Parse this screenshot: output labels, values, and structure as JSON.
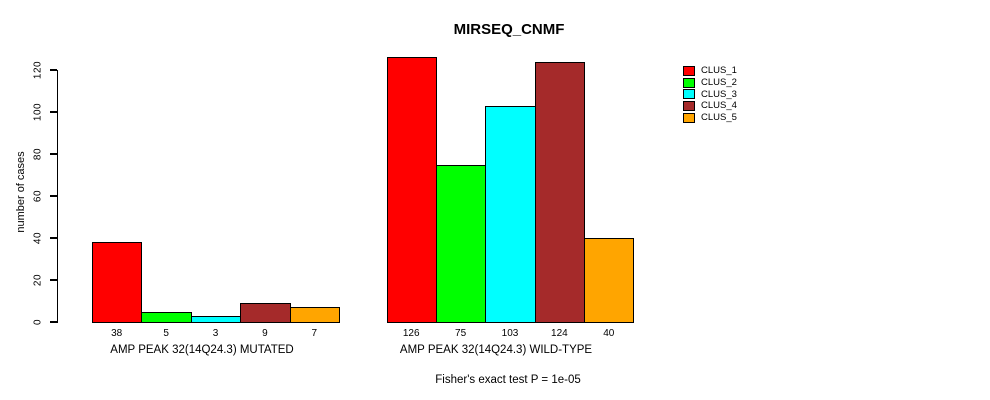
{
  "chart_data": {
    "type": "bar",
    "title": "MIRSEQ_CNMF",
    "subtitle": "Fisher's exact test P = 1e-05",
    "ylabel": "number of cases",
    "xlabel": "",
    "ylim": [
      0,
      120
    ],
    "yticks": [
      0,
      20,
      40,
      60,
      80,
      100,
      120
    ],
    "grid": false,
    "legend_position": "right",
    "bar_value_labels": true,
    "categories": [
      "AMP PEAK 32(14Q24.3) MUTATED",
      "AMP PEAK 32(14Q24.3) WILD-TYPE"
    ],
    "series": [
      {
        "name": "CLUS_1",
        "color": "#FF0000",
        "values": [
          38,
          126
        ]
      },
      {
        "name": "CLUS_2",
        "color": "#00FF00",
        "values": [
          5,
          75
        ]
      },
      {
        "name": "CLUS_3",
        "color": "#00FFFF",
        "values": [
          3,
          103
        ]
      },
      {
        "name": "CLUS_4",
        "color": "#A52A2A",
        "values": [
          9,
          124
        ]
      },
      {
        "name": "CLUS_5",
        "color": "#FFA500",
        "values": [
          7,
          40
        ]
      }
    ]
  },
  "colors": {
    "background": "#FFFFFF",
    "axis": "#000000",
    "text": "#000000"
  }
}
